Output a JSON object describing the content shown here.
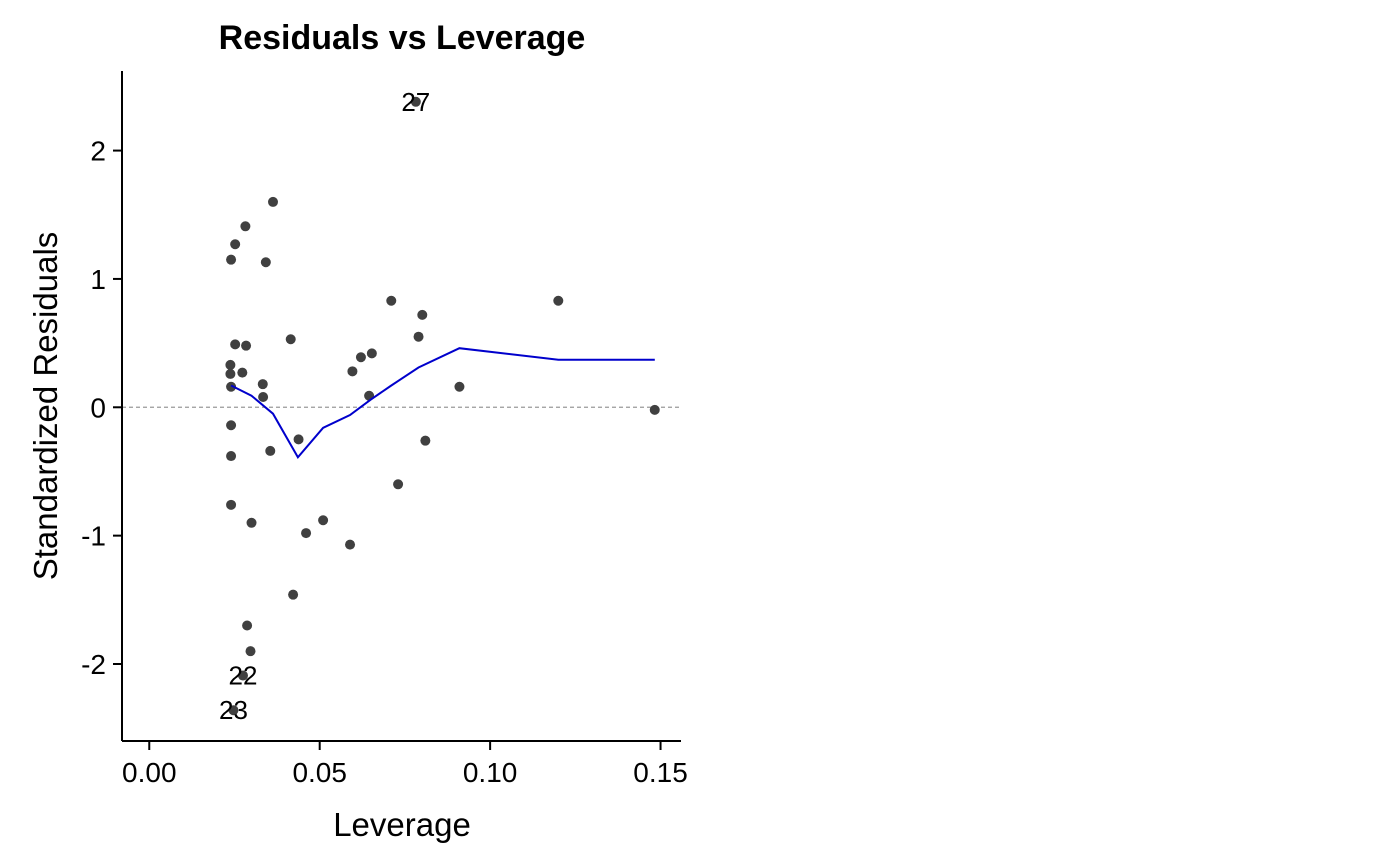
{
  "chart_data": {
    "type": "scatter",
    "title": "Residuals vs Leverage",
    "xlabel": "Leverage",
    "ylabel": "Standardized Residuals",
    "xlim": [
      -0.008,
      0.156
    ],
    "ylim": [
      -2.6,
      2.62
    ],
    "xticks": [
      0.0,
      0.05,
      0.1,
      0.15
    ],
    "xtick_labels": [
      "0.00",
      "0.05",
      "0.10",
      "0.15"
    ],
    "yticks": [
      -2,
      -1,
      0,
      1,
      2
    ],
    "ytick_labels": [
      "-2",
      "-1",
      "0",
      "1",
      "2"
    ],
    "grid": false,
    "reference_line": {
      "y": 0,
      "style": "dashed",
      "color": "#999999"
    },
    "point_color": "#404040",
    "smooth_color": "#0000cc",
    "points": [
      {
        "x": 0.0782,
        "y": 2.38,
        "label": "27"
      },
      {
        "x": 0.0363,
        "y": 1.6
      },
      {
        "x": 0.0282,
        "y": 1.41
      },
      {
        "x": 0.0252,
        "y": 1.27
      },
      {
        "x": 0.024,
        "y": 1.15
      },
      {
        "x": 0.0342,
        "y": 1.13
      },
      {
        "x": 0.071,
        "y": 0.83
      },
      {
        "x": 0.12,
        "y": 0.83
      },
      {
        "x": 0.0801,
        "y": 0.72
      },
      {
        "x": 0.079,
        "y": 0.55
      },
      {
        "x": 0.0415,
        "y": 0.53
      },
      {
        "x": 0.0252,
        "y": 0.49
      },
      {
        "x": 0.0284,
        "y": 0.48
      },
      {
        "x": 0.0653,
        "y": 0.42
      },
      {
        "x": 0.0621,
        "y": 0.39
      },
      {
        "x": 0.0238,
        "y": 0.33
      },
      {
        "x": 0.0596,
        "y": 0.28
      },
      {
        "x": 0.0273,
        "y": 0.27
      },
      {
        "x": 0.0238,
        "y": 0.26
      },
      {
        "x": 0.0333,
        "y": 0.18
      },
      {
        "x": 0.024,
        "y": 0.16
      },
      {
        "x": 0.091,
        "y": 0.16
      },
      {
        "x": 0.0645,
        "y": 0.09
      },
      {
        "x": 0.0334,
        "y": 0.08
      },
      {
        "x": 0.1483,
        "y": -0.02
      },
      {
        "x": 0.024,
        "y": -0.14
      },
      {
        "x": 0.0438,
        "y": -0.25
      },
      {
        "x": 0.081,
        "y": -0.26
      },
      {
        "x": 0.0355,
        "y": -0.34
      },
      {
        "x": 0.024,
        "y": -0.38
      },
      {
        "x": 0.073,
        "y": -0.6
      },
      {
        "x": 0.024,
        "y": -0.76
      },
      {
        "x": 0.051,
        "y": -0.88
      },
      {
        "x": 0.03,
        "y": -0.9
      },
      {
        "x": 0.046,
        "y": -0.98
      },
      {
        "x": 0.0589,
        "y": -1.07
      },
      {
        "x": 0.0422,
        "y": -1.46
      },
      {
        "x": 0.0287,
        "y": -1.7
      },
      {
        "x": 0.0297,
        "y": -1.9
      },
      {
        "x": 0.0275,
        "y": -2.09,
        "label": "22"
      },
      {
        "x": 0.0247,
        "y": -2.36,
        "label": "23"
      }
    ],
    "smooth_line": [
      {
        "x": 0.024,
        "y": 0.17
      },
      {
        "x": 0.03,
        "y": 0.09
      },
      {
        "x": 0.0363,
        "y": -0.05
      },
      {
        "x": 0.0436,
        "y": -0.39
      },
      {
        "x": 0.051,
        "y": -0.16
      },
      {
        "x": 0.0589,
        "y": -0.06
      },
      {
        "x": 0.065,
        "y": 0.06
      },
      {
        "x": 0.071,
        "y": 0.17
      },
      {
        "x": 0.079,
        "y": 0.31
      },
      {
        "x": 0.091,
        "y": 0.46
      },
      {
        "x": 0.12,
        "y": 0.37
      },
      {
        "x": 0.1483,
        "y": 0.37
      }
    ]
  }
}
